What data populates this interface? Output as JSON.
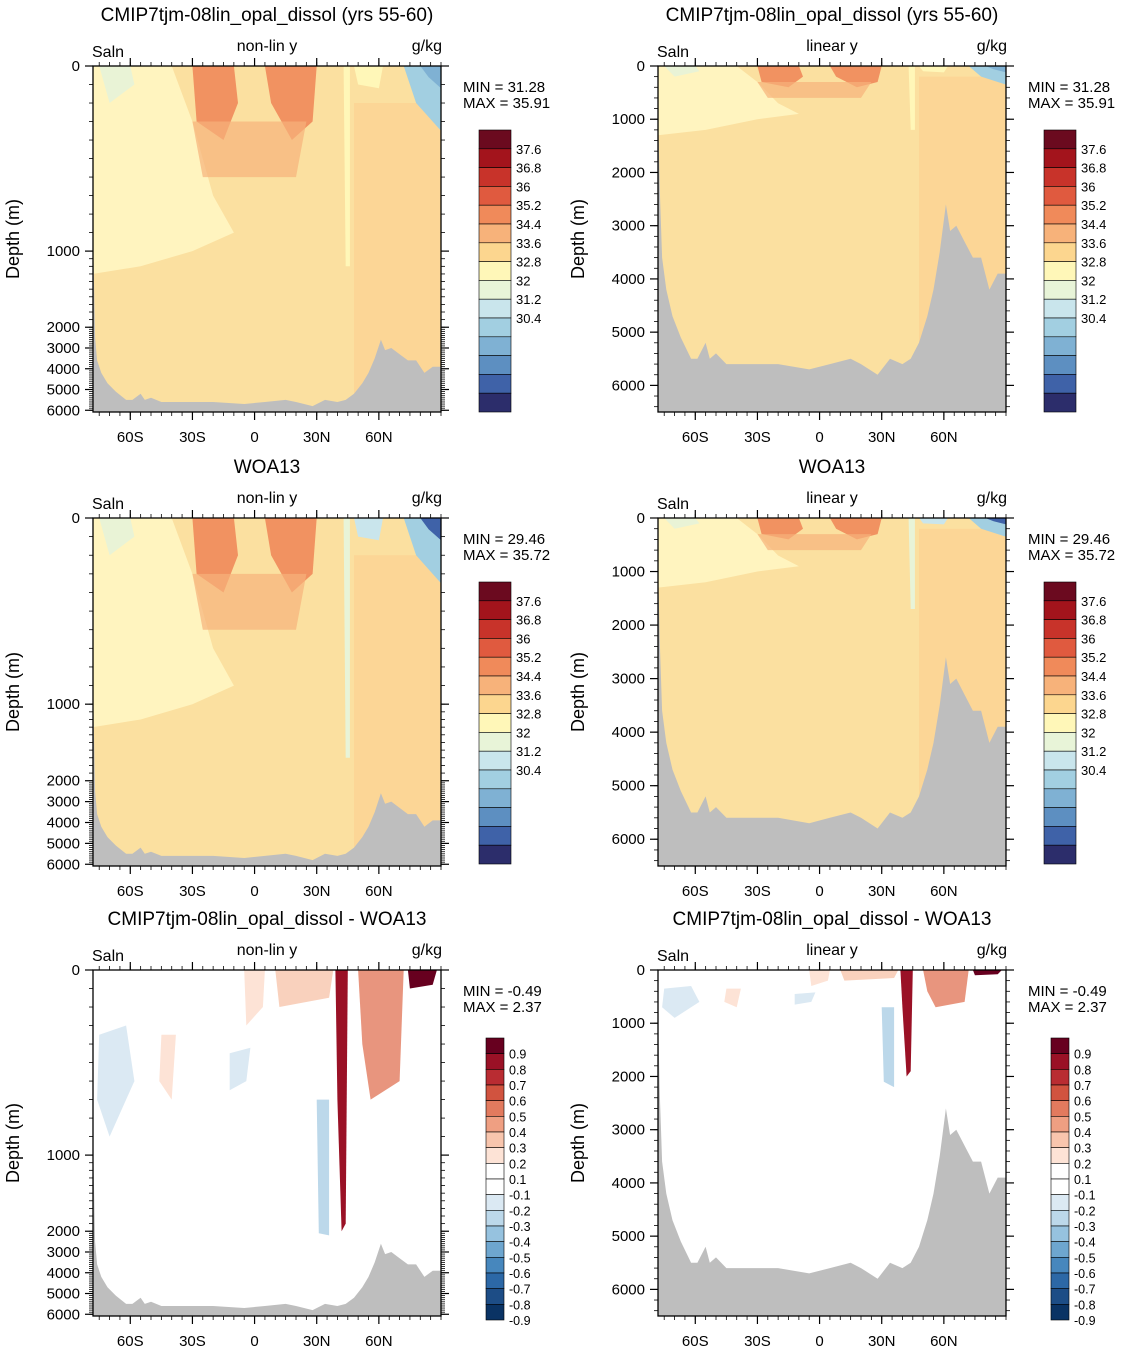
{
  "figure": {
    "panels": [
      {
        "title": "CMIP7tjm-08lin_opal_dissol (yrs 55-60)",
        "left_label": "Saln",
        "center_label": "non-lin y",
        "right_label": "g/kg",
        "ylabel": "Depth (m)",
        "min_label": "MIN =  31.28",
        "max_label": "MAX =  35.91",
        "palette": "salinity"
      },
      {
        "title": "CMIP7tjm-08lin_opal_dissol (yrs 55-60)",
        "left_label": "Saln",
        "center_label": "linear y",
        "right_label": "g/kg",
        "ylabel": "Depth (m)",
        "min_label": "MIN =  31.28",
        "max_label": "MAX =  35.91",
        "palette": "salinity"
      },
      {
        "title": "WOA13",
        "left_label": "Saln",
        "center_label": "non-lin y",
        "right_label": "g/kg",
        "ylabel": "Depth (m)",
        "min_label": "MIN =  29.46",
        "max_label": "MAX =  35.72",
        "palette": "salinity"
      },
      {
        "title": "WOA13",
        "left_label": "Saln",
        "center_label": "linear y",
        "right_label": "g/kg",
        "ylabel": "Depth (m)",
        "min_label": "MIN =  29.46",
        "max_label": "MAX =  35.72",
        "palette": "salinity"
      },
      {
        "title": "CMIP7tjm-08lin_opal_dissol - WOA13",
        "left_label": "Saln",
        "center_label": "non-lin y",
        "right_label": "g/kg",
        "ylabel": "Depth (m)",
        "min_label": "MIN =  -0.49",
        "max_label": "MAX =   2.37",
        "palette": "difference"
      },
      {
        "title": "CMIP7tjm-08lin_opal_dissol - WOA13",
        "left_label": "Saln",
        "center_label": "linear y",
        "right_label": "g/kg",
        "ylabel": "Depth (m)",
        "min_label": "MIN =  -0.49",
        "max_label": "MAX =   2.37",
        "palette": "difference"
      }
    ],
    "x_tick_labels": [
      "60S",
      "30S",
      "0",
      "30N",
      "60N"
    ],
    "nonlin_depth_ticks": [
      "0",
      "1000",
      "2000",
      "3000",
      "4000",
      "5000",
      "6000"
    ],
    "lin_depth_ticks": [
      "0",
      "1000",
      "2000",
      "3000",
      "4000",
      "5000",
      "6000"
    ]
  },
  "chart_data": [
    {
      "type": "heatmap",
      "title": "CMIP7tjm-08lin_opal_dissol (yrs 55-60)",
      "variable": "Saln",
      "units": "g/kg",
      "y_axis": "non-lin y",
      "xlabel": "",
      "ylabel": "Depth (m)",
      "x_ticks": [
        "60S",
        "30S",
        "0",
        "30N",
        "60N"
      ],
      "y_ticks": [
        0,
        1000,
        2000,
        3000,
        4000,
        5000,
        6000
      ],
      "min": 31.28,
      "max": 35.91,
      "colorbar_levels": [
        37.6,
        36.8,
        36,
        35.2,
        34.4,
        33.6,
        32.8,
        32,
        31.2,
        30.4
      ]
    },
    {
      "type": "heatmap",
      "title": "CMIP7tjm-08lin_opal_dissol (yrs 55-60)",
      "variable": "Saln",
      "units": "g/kg",
      "y_axis": "linear y",
      "xlabel": "",
      "ylabel": "Depth (m)",
      "x_ticks": [
        "60S",
        "30S",
        "0",
        "30N",
        "60N"
      ],
      "y_ticks": [
        0,
        1000,
        2000,
        3000,
        4000,
        5000,
        6000
      ],
      "min": 31.28,
      "max": 35.91,
      "colorbar_levels": [
        37.6,
        36.8,
        36,
        35.2,
        34.4,
        33.6,
        32.8,
        32,
        31.2,
        30.4
      ]
    },
    {
      "type": "heatmap",
      "title": "WOA13",
      "variable": "Saln",
      "units": "g/kg",
      "y_axis": "non-lin y",
      "xlabel": "",
      "ylabel": "Depth (m)",
      "x_ticks": [
        "60S",
        "30S",
        "0",
        "30N",
        "60N"
      ],
      "y_ticks": [
        0,
        1000,
        2000,
        3000,
        4000,
        5000,
        6000
      ],
      "min": 29.46,
      "max": 35.72,
      "colorbar_levels": [
        37.6,
        36.8,
        36,
        35.2,
        34.4,
        33.6,
        32.8,
        32,
        31.2,
        30.4
      ]
    },
    {
      "type": "heatmap",
      "title": "WOA13",
      "variable": "Saln",
      "units": "g/kg",
      "y_axis": "linear y",
      "xlabel": "",
      "ylabel": "Depth (m)",
      "x_ticks": [
        "60S",
        "30S",
        "0",
        "30N",
        "60N"
      ],
      "y_ticks": [
        0,
        1000,
        2000,
        3000,
        4000,
        5000,
        6000
      ],
      "min": 29.46,
      "max": 35.72,
      "colorbar_levels": [
        37.6,
        36.8,
        36,
        35.2,
        34.4,
        33.6,
        32.8,
        32,
        31.2,
        30.4
      ]
    },
    {
      "type": "heatmap",
      "title": "CMIP7tjm-08lin_opal_dissol - WOA13",
      "variable": "Saln",
      "units": "g/kg",
      "y_axis": "non-lin y",
      "xlabel": "",
      "ylabel": "Depth (m)",
      "x_ticks": [
        "60S",
        "30S",
        "0",
        "30N",
        "60N"
      ],
      "y_ticks": [
        0,
        1000,
        2000,
        3000,
        4000,
        5000,
        6000
      ],
      "min": -0.49,
      "max": 2.37,
      "colorbar_levels": [
        0.9,
        0.8,
        0.7,
        0.6,
        0.5,
        0.4,
        0.3,
        0.2,
        0.1,
        -0.1,
        -0.2,
        -0.3,
        -0.4,
        -0.5,
        -0.6,
        -0.7,
        -0.8,
        -0.9
      ]
    },
    {
      "type": "heatmap",
      "title": "CMIP7tjm-08lin_opal_dissol - WOA13",
      "variable": "Saln",
      "units": "g/kg",
      "y_axis": "linear y",
      "xlabel": "",
      "ylabel": "Depth (m)",
      "x_ticks": [
        "60S",
        "30S",
        "0",
        "30N",
        "60N"
      ],
      "y_ticks": [
        0,
        1000,
        2000,
        3000,
        4000,
        5000,
        6000
      ],
      "min": -0.49,
      "max": 2.37,
      "colorbar_levels": [
        0.9,
        0.8,
        0.7,
        0.6,
        0.5,
        0.4,
        0.3,
        0.2,
        0.1,
        -0.1,
        -0.2,
        -0.3,
        -0.4,
        -0.5,
        -0.6,
        -0.7,
        -0.8,
        -0.9
      ]
    }
  ],
  "colors": {
    "land": "#bebebe",
    "salinity_palette": [
      "#6b0a1f",
      "#a3141c",
      "#c8332a",
      "#e05a3f",
      "#f08a5a",
      "#f7b27a",
      "#fcd68f",
      "#fff7b8",
      "#e8f4d8",
      "#c9e5ec",
      "#a2cfe1",
      "#7fb1d3",
      "#5d8fc1",
      "#3f62a8",
      "#2c2d6b"
    ],
    "difference_palette": [
      "#67001f",
      "#9a1126",
      "#b92c32",
      "#d1533f",
      "#e27a5e",
      "#ef9f82",
      "#f8c5ad",
      "#fde3d6",
      "#ffffff",
      "#ffffff",
      "#dbe9f3",
      "#bcd8ea",
      "#96c2df",
      "#6ea6cf",
      "#4787bd",
      "#2c68a6",
      "#1d4d86",
      "#0a3364"
    ]
  }
}
